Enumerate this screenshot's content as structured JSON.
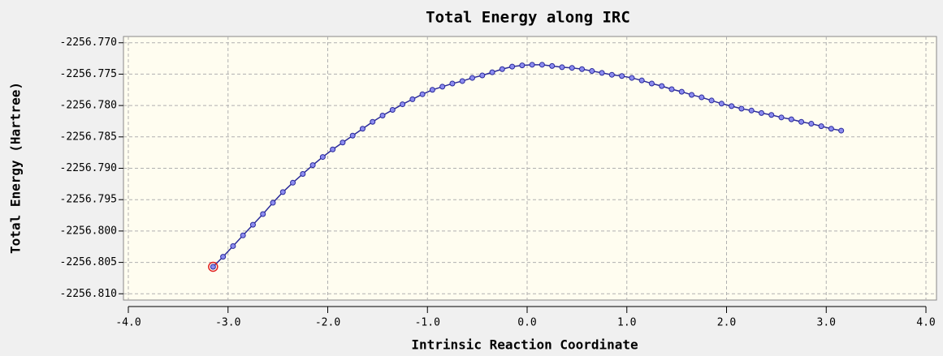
{
  "chart_data": {
    "type": "line",
    "title": "Total Energy along IRC",
    "x_label": "Intrinsic Reaction Coordinate",
    "y_label": "Total Energy (Hartree)",
    "x": [
      -3.15,
      -3.05,
      -2.95,
      -2.85,
      -2.75,
      -2.65,
      -2.55,
      -2.45,
      -2.35,
      -2.25,
      -2.15,
      -2.05,
      -1.95,
      -1.85,
      -1.75,
      -1.65,
      -1.55,
      -1.45,
      -1.35,
      -1.25,
      -1.15,
      -1.05,
      -0.95,
      -0.85,
      -0.75,
      -0.65,
      -0.55,
      -0.45,
      -0.35,
      -0.25,
      -0.15,
      -0.05,
      0.05,
      0.15,
      0.25,
      0.35,
      0.45,
      0.55,
      0.65,
      0.75,
      0.85,
      0.95,
      1.05,
      1.15,
      1.25,
      1.35,
      1.45,
      1.55,
      1.65,
      1.75,
      1.85,
      1.95,
      2.05,
      2.15,
      2.25,
      2.35,
      2.45,
      2.55,
      2.65,
      2.75,
      2.85,
      2.95,
      3.05,
      3.15
    ],
    "series": [
      {
        "color": "#2a2a9a",
        "marker_color": "#8c8cf0",
        "values": [
          -2256.8057,
          -2256.8041,
          -2256.8024,
          -2256.8007,
          -2256.799,
          -2256.7973,
          -2256.7955,
          -2256.7938,
          -2256.7923,
          -2256.7909,
          -2256.7895,
          -2256.7882,
          -2256.787,
          -2256.7859,
          -2256.7848,
          -2256.7837,
          -2256.7826,
          -2256.7816,
          -2256.7807,
          -2256.7798,
          -2256.779,
          -2256.7782,
          -2256.7775,
          -2256.777,
          -2256.7765,
          -2256.7761,
          -2256.7756,
          -2256.7752,
          -2256.7747,
          -2256.7742,
          -2256.7738,
          -2256.7736,
          -2256.7735,
          -2256.7735,
          -2256.7737,
          -2256.7739,
          -2256.774,
          -2256.7742,
          -2256.7745,
          -2256.7748,
          -2256.7751,
          -2256.7753,
          -2256.7756,
          -2256.776,
          -2256.7765,
          -2256.7769,
          -2256.7774,
          -2256.7778,
          -2256.7783,
          -2256.7787,
          -2256.7792,
          -2256.7797,
          -2256.7801,
          -2256.7805,
          -2256.7808,
          -2256.7812,
          -2256.7815,
          -2256.7819,
          -2256.7822,
          -2256.7826,
          -2256.7829,
          -2256.7833,
          -2256.7837,
          -2256.784
        ]
      }
    ],
    "highlight_index": 0,
    "highlight_color": "#e02020",
    "xlim": [
      -4,
      4
    ],
    "ylim": [
      -2256.811,
      -2256.769
    ],
    "xticks": [
      {
        "value": -4,
        "label": "-4.0"
      },
      {
        "value": -3,
        "label": "-3.0"
      },
      {
        "value": -2,
        "label": "-2.0"
      },
      {
        "value": -1,
        "label": "-1.0"
      },
      {
        "value": 0,
        "label": "0.0"
      },
      {
        "value": 1,
        "label": "1.0"
      },
      {
        "value": 2,
        "label": "2.0"
      },
      {
        "value": 3,
        "label": "3.0"
      },
      {
        "value": 4,
        "label": "4.0"
      }
    ],
    "yticks": [
      {
        "value": -2256.77,
        "label": "-2256.770"
      },
      {
        "value": -2256.775,
        "label": "-2256.775"
      },
      {
        "value": -2256.78,
        "label": "-2256.780"
      },
      {
        "value": -2256.785,
        "label": "-2256.785"
      },
      {
        "value": -2256.79,
        "label": "-2256.790"
      },
      {
        "value": -2256.795,
        "label": "-2256.795"
      },
      {
        "value": -2256.8,
        "label": "-2256.800"
      },
      {
        "value": -2256.805,
        "label": "-2256.805"
      },
      {
        "value": -2256.81,
        "label": "-2256.810"
      }
    ],
    "grid": true
  }
}
